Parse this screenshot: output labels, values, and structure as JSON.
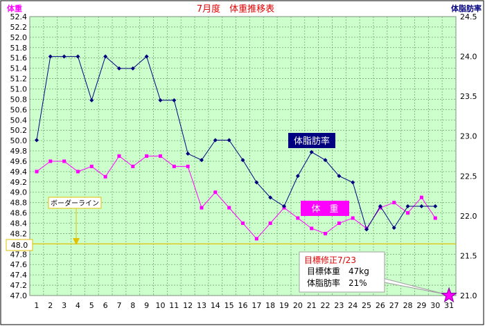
{
  "chart_data": {
    "type": "line",
    "title": "7月度　体重推移表",
    "left_axis_label": "体重",
    "right_axis_label": "体脂肪率",
    "categories": [
      "1",
      "2",
      "3",
      "4",
      "5",
      "6",
      "7",
      "8",
      "9",
      "10",
      "11",
      "12",
      "13",
      "14",
      "15",
      "16",
      "17",
      "18",
      "19",
      "20",
      "21",
      "22",
      "23",
      "24",
      "25",
      "26",
      "27",
      "28",
      "29",
      "30",
      "31"
    ],
    "y_left": {
      "min": 47.0,
      "max": 52.4,
      "step": 0.2,
      "ticks": [
        "47.0",
        "47.2",
        "47.4",
        "47.6",
        "47.8",
        "48.0",
        "48.2",
        "48.4",
        "48.6",
        "48.8",
        "49.0",
        "49.2",
        "49.4",
        "49.6",
        "49.8",
        "50.0",
        "50.2",
        "50.4",
        "50.6",
        "50.8",
        "51.0",
        "51.2",
        "51.4",
        "51.6",
        "51.8",
        "52.0",
        "52.2",
        "52.4"
      ]
    },
    "y_right": {
      "min": 21.0,
      "max": 24.5,
      "step": 0.5,
      "ticks": [
        "21.0",
        "21.5",
        "22.0",
        "22.5",
        "23.0",
        "23.5",
        "24.0",
        "24.5"
      ]
    },
    "grid": true,
    "series": [
      {
        "name": "体　重",
        "axis": "left",
        "color": "#ff00ff",
        "values": [
          49.4,
          49.6,
          49.6,
          49.4,
          49.5,
          49.3,
          49.7,
          49.5,
          49.7,
          49.7,
          49.5,
          49.5,
          48.7,
          49.0,
          48.7,
          48.4,
          48.1,
          48.4,
          48.7,
          48.5,
          48.3,
          48.2,
          48.4,
          48.5,
          48.3,
          48.7,
          48.8,
          48.6,
          48.9,
          48.5,
          null
        ]
      },
      {
        "name": "体脂肪率",
        "axis": "right",
        "color": "#000080",
        "values": [
          22.95,
          24.0,
          24.0,
          24.0,
          23.45,
          24.0,
          23.85,
          23.85,
          24.0,
          23.45,
          23.45,
          22.78,
          22.7,
          22.95,
          22.95,
          22.7,
          22.42,
          22.23,
          22.12,
          22.5,
          22.8,
          22.7,
          22.5,
          22.42,
          21.83,
          22.12,
          21.85,
          22.12,
          22.12,
          22.12,
          null
        ]
      }
    ],
    "reference_line": {
      "label": "ボーダーライン",
      "axis": "left",
      "value": 48.0,
      "color": "#e0c000"
    },
    "target_note": {
      "heading": "目標修正7/23",
      "line1": "目標体重　47kg",
      "line2": "体脂肪率　21%",
      "target_category": "31"
    }
  }
}
